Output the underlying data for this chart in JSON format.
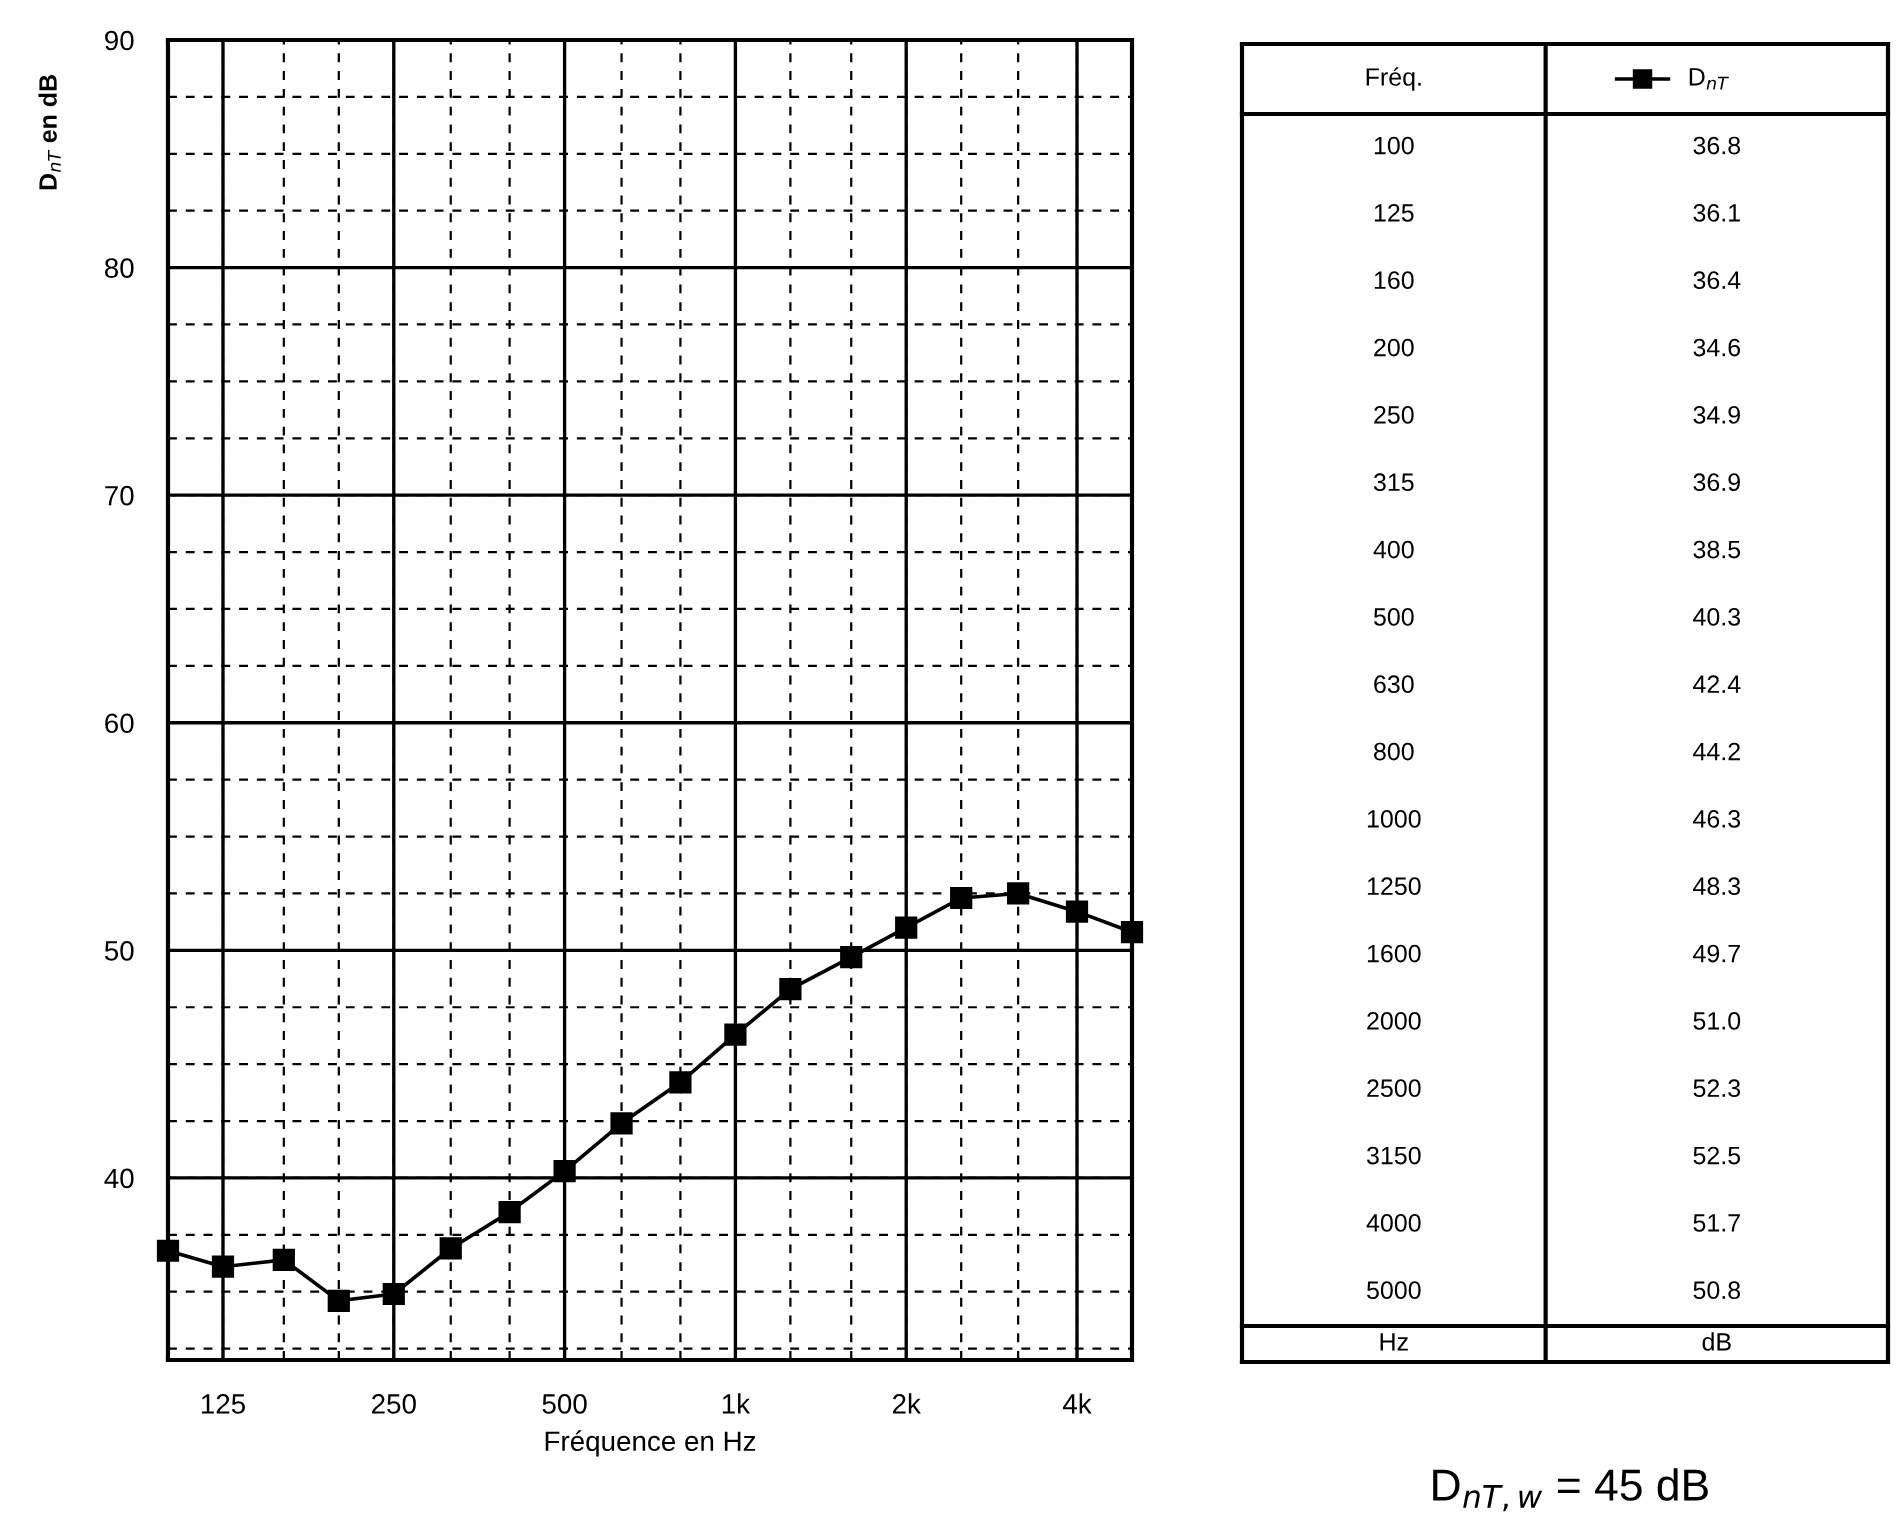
{
  "chart_data": [
    {
      "type": "line",
      "ylabel": "D$_{nT}$ en dB",
      "xlabel": "Fréquence en Hz",
      "x": [
        100,
        125,
        160,
        200,
        250,
        315,
        400,
        500,
        630,
        800,
        1000,
        1250,
        1600,
        2000,
        2500,
        3150,
        4000,
        5000
      ],
      "series": [
        {
          "name": "D$_{nT}$",
          "color": "#000000",
          "values": [
            36.8,
            36.1,
            36.4,
            34.6,
            34.9,
            36.9,
            38.5,
            40.3,
            42.4,
            44.2,
            46.3,
            48.3,
            49.7,
            51.0,
            52.3,
            52.5,
            51.7,
            50.8
          ]
        }
      ],
      "log": "x",
      "xlim": [
        100,
        5000
      ],
      "xticks": [
        125,
        250,
        500,
        {
          "value": 1000,
          "label": "1k"
        },
        {
          "value": 2000,
          "label": "2k"
        },
        {
          "value": 4000,
          "label": "4k"
        }
      ],
      "ylim": [
        32,
        90
      ],
      "yticks": [
        40,
        50,
        60,
        70,
        80,
        90
      ],
      "grid": true,
      "marker": "square",
      "line_style": "solid",
      "legend": "right"
    },
    {
      "type": "other",
      "categories": [
        "100",
        "125",
        "160",
        "200",
        "250",
        "315",
        "400",
        "500",
        "630",
        "800",
        "1000",
        "1250",
        "1600",
        "2000",
        "2500",
        "3150",
        "4000",
        "5000"
      ],
      "value_labels": [
        "36.8",
        "36.1",
        "36.4",
        "34.6",
        "34.9",
        "36.9",
        "38.5",
        "40.3",
        "42.4",
        "44.2",
        "46.3",
        "48.3",
        "49.7",
        "51.0",
        "52.3",
        "52.5",
        "51.7",
        "50.8"
      ],
      "annotations": [
        "Fréq.",
        "Hz",
        "dB",
        "D$_{nT,w}$ = 45 dB"
      ]
    }
  ]
}
